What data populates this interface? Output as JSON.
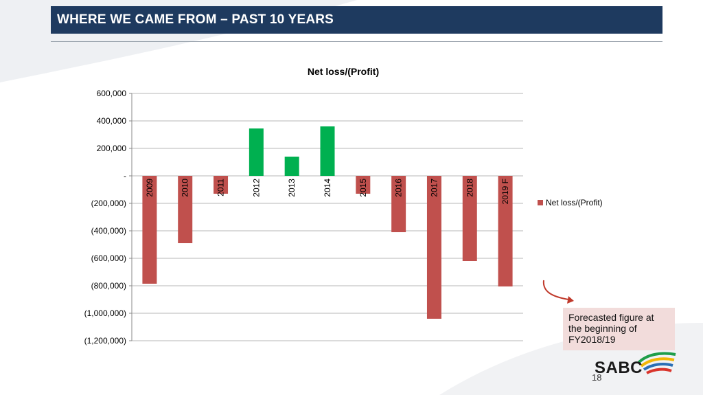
{
  "header": {
    "title": "WHERE WE CAME FROM – PAST 10 YEARS"
  },
  "chart_data": {
    "type": "bar",
    "title": "Net loss/(Profit)",
    "categories": [
      "2009",
      "2010",
      "2011",
      "2012",
      "2013",
      "2014",
      "2015",
      "2016",
      "2017",
      "2018",
      "2019 F"
    ],
    "series": [
      {
        "name": "Net loss/(Profit)",
        "values": [
          -785000,
          -490000,
          -130000,
          345000,
          140000,
          360000,
          -130000,
          -410000,
          -1040000,
          -620000,
          -805000
        ]
      }
    ],
    "ylim": [
      -1200000,
      600000
    ],
    "y_ticks": [
      600000,
      400000,
      200000,
      0,
      -200000,
      -400000,
      -600000,
      -800000,
      -1000000,
      -1200000
    ],
    "y_tick_labels": [
      "600,000",
      "400,000",
      "200,000",
      "-",
      "(200,000)",
      "(400,000)",
      "(600,000)",
      "(800,000)",
      "(1,000,000)",
      "(1,200,000)"
    ],
    "grid": true,
    "legend_position": "right",
    "colors": {
      "negative": "#c0504d",
      "positive": "#00b050"
    }
  },
  "callout": {
    "text": "Forecasted figure at the beginning of FY2018/19"
  },
  "logo": {
    "text": "SABC"
  },
  "page": {
    "number": "18"
  },
  "colors": {
    "header_bg": "#1e3a5f",
    "callout_bg": "#f2dcdb",
    "arrow": "#c0392b"
  }
}
